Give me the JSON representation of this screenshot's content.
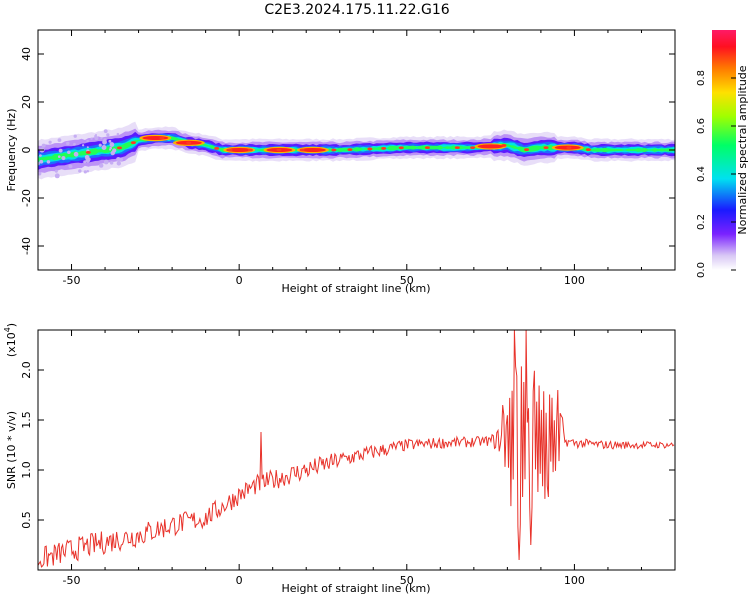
{
  "title": "C2E3.2024.175.11.22.G16",
  "chart_data": [
    {
      "type": "heatmap",
      "xlabel": "Height of straight line (km)",
      "ylabel": "Frequency (Hz)",
      "xlim": [
        -60,
        130
      ],
      "ylim": [
        -50,
        50
      ],
      "xticks": [
        -50,
        0,
        50,
        100
      ],
      "yticks": [
        -40,
        -20,
        0,
        20,
        40
      ],
      "colorbar": {
        "label": "Normalized spectral amplitude",
        "range": [
          0.0,
          1.0
        ],
        "ticks": [
          0.0,
          0.2,
          0.4,
          0.6,
          0.8
        ]
      },
      "ridge": {
        "x": [
          -60,
          -50,
          -45,
          -40,
          -35,
          -30,
          -25,
          -20,
          -15,
          -10,
          -5,
          0,
          10,
          20,
          30,
          40,
          50,
          60,
          70,
          75,
          80,
          85,
          90,
          95,
          100,
          105,
          110,
          120,
          130
        ],
        "y": [
          -4,
          -2,
          -1,
          0,
          1,
          4,
          5,
          5,
          3,
          2,
          0,
          0,
          0,
          0,
          0,
          0.5,
          1,
          1,
          1,
          1.5,
          2,
          0,
          1,
          1,
          1,
          0,
          0,
          0,
          0
        ]
      },
      "hotspots": [
        {
          "x": -25,
          "y": 5,
          "value": 0.95
        },
        {
          "x": -15,
          "y": 3,
          "value": 0.9
        },
        {
          "x": 0,
          "y": 0,
          "value": 0.9
        },
        {
          "x": 12,
          "y": 0,
          "value": 0.85
        },
        {
          "x": 22,
          "y": 0,
          "value": 0.85
        },
        {
          "x": 75,
          "y": 1.5,
          "value": 0.9
        },
        {
          "x": 98,
          "y": 1,
          "value": 0.95
        }
      ]
    },
    {
      "type": "line",
      "xlabel": "Height of straight line (km)",
      "ylabel": "SNR (10 * v/v)",
      "yscale_label": "(x10",
      "yscale_exp": "4",
      "y_multiplier": 10000,
      "xlim": [
        -60,
        130
      ],
      "ylim": [
        0.0,
        2.4
      ],
      "xticks": [
        -50,
        0,
        50,
        100
      ],
      "yticks": [
        0.5,
        1.0,
        1.5,
        2.0
      ],
      "color": "#e8322a",
      "trend": {
        "x": [
          -60,
          -50,
          -40,
          -30,
          -20,
          -10,
          0,
          5,
          10,
          20,
          30,
          40,
          50,
          60,
          70,
          78,
          82,
          85,
          88,
          92,
          95,
          100,
          110,
          120,
          130
        ],
        "y": [
          0.1,
          0.2,
          0.28,
          0.35,
          0.45,
          0.52,
          0.75,
          0.85,
          0.9,
          1.0,
          1.1,
          1.18,
          1.25,
          1.27,
          1.28,
          1.3,
          1.2,
          1.2,
          1.25,
          1.25,
          1.3,
          1.27,
          1.25,
          1.25,
          1.25
        ]
      },
      "noise_amplitude": [
        {
          "x": -60,
          "a": 0.12
        },
        {
          "x": -30,
          "a": 0.12
        },
        {
          "x": 0,
          "a": 0.1
        },
        {
          "x": 20,
          "a": 0.1
        },
        {
          "x": 50,
          "a": 0.06
        },
        {
          "x": 75,
          "a": 0.05
        },
        {
          "x": 78,
          "a": 0.15
        },
        {
          "x": 82,
          "a": 0.9
        },
        {
          "x": 86,
          "a": 0.85
        },
        {
          "x": 92,
          "a": 0.6
        },
        {
          "x": 96,
          "a": 0.4
        },
        {
          "x": 97,
          "a": 0.05
        },
        {
          "x": 130,
          "a": 0.03
        }
      ],
      "spikes": [
        {
          "x": 6.5,
          "y": 1.38
        },
        {
          "x": 78.5,
          "y": 1.65
        },
        {
          "x": 82,
          "y": 2.4
        },
        {
          "x": 83.5,
          "y": 0.1
        },
        {
          "x": 85.5,
          "y": 2.4
        },
        {
          "x": 87,
          "y": 0.25
        },
        {
          "x": 95,
          "y": 1.8
        }
      ]
    }
  ]
}
